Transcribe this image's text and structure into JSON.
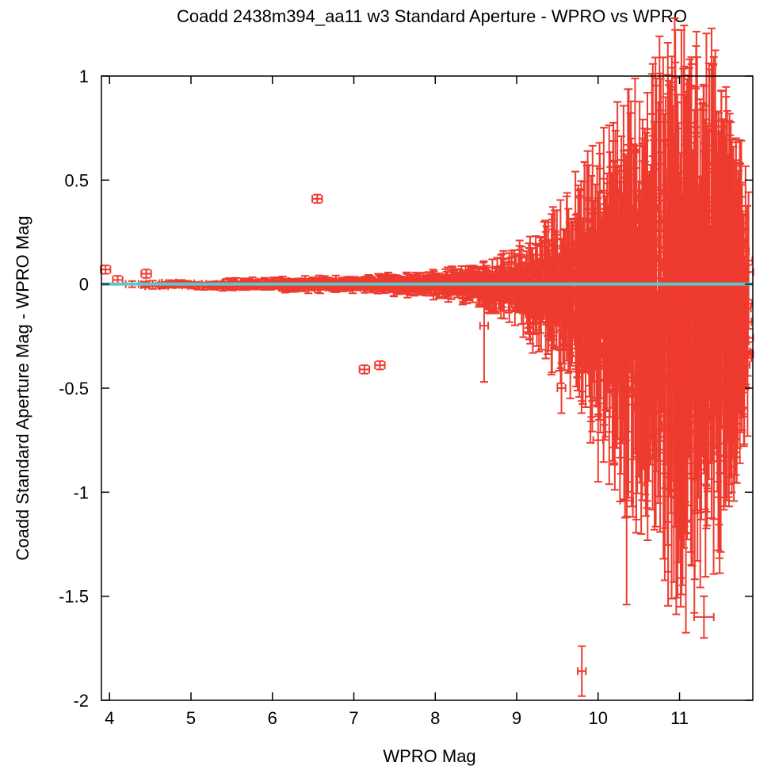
{
  "chart_data": {
    "type": "scatter",
    "title": "Coadd 2438m394_aa11 w3 Standard Aperture - WPRO vs WPRO",
    "xlabel": "WPRO Mag",
    "ylabel": "Coadd Standard Aperture Mag - WPRO Mag",
    "xlim": [
      3.9,
      11.9
    ],
    "ylim": [
      -2,
      1
    ],
    "xticks": [
      4,
      5,
      6,
      7,
      8,
      9,
      10,
      11
    ],
    "yticks": [
      1,
      0.5,
      0,
      -0.5,
      -1,
      -1.5,
      -2
    ],
    "xtick_labels": [
      "4",
      "5",
      "6",
      "7",
      "8",
      "9",
      "10",
      "11"
    ],
    "ytick_labels": [
      "1",
      "0.5",
      "0",
      "-0.5",
      "-1",
      "-1.5",
      "-2"
    ],
    "grid": false,
    "reference_line": {
      "y": 0,
      "color": "#5ec8c8"
    },
    "series": [
      {
        "color": "#ee3b2f",
        "marker": "error-bar cross",
        "notable_points": [
          {
            "x": 3.95,
            "y": 0.07,
            "xerr": 0.06,
            "yerr": 0.02
          },
          {
            "x": 4.1,
            "y": 0.02,
            "xerr": 0.06,
            "yerr": 0.02
          },
          {
            "x": 4.45,
            "y": 0.05,
            "xerr": 0.06,
            "yerr": 0.02
          },
          {
            "x": 6.55,
            "y": 0.41,
            "xerr": 0.06,
            "yerr": 0.02
          },
          {
            "x": 7.13,
            "y": -0.41,
            "xerr": 0.06,
            "yerr": 0.02
          },
          {
            "x": 7.32,
            "y": -0.39,
            "xerr": 0.06,
            "yerr": 0.02
          },
          {
            "x": 8.6,
            "y": -0.2,
            "xerr": 0.05,
            "yerr": 0.27
          },
          {
            "x": 9.55,
            "y": -0.5,
            "xerr": 0.05,
            "yerr": 0.12
          },
          {
            "x": 10.0,
            "y": -0.75,
            "xerr": 0.06,
            "yerr": 0.2
          },
          {
            "x": 10.35,
            "y": -1.04,
            "xerr": 0.08,
            "yerr": 0.5
          },
          {
            "x": 9.8,
            "y": -1.86,
            "xerr": 0.05,
            "yerr": 0.12
          },
          {
            "x": 11.3,
            "y": -1.6,
            "xerr": 0.12,
            "yerr": 0.1
          },
          {
            "x": 11.3,
            "y": 0.02,
            "xerr": 0.1,
            "yerr": 0.93
          }
        ],
        "band_envelope": {
          "x": [
            3.95,
            5.0,
            6.0,
            7.0,
            8.0,
            8.5,
            9.0,
            9.5,
            10.0,
            10.5,
            11.0,
            11.5,
            11.85
          ],
          "y_upper": [
            0.02,
            0.02,
            0.03,
            0.03,
            0.05,
            0.07,
            0.12,
            0.2,
            0.4,
            0.6,
            0.75,
            0.65,
            0.1
          ],
          "y_lower": [
            -0.02,
            -0.02,
            -0.03,
            -0.04,
            -0.06,
            -0.1,
            -0.2,
            -0.45,
            -0.8,
            -1.2,
            -1.6,
            -1.4,
            -0.8
          ]
        }
      }
    ]
  }
}
